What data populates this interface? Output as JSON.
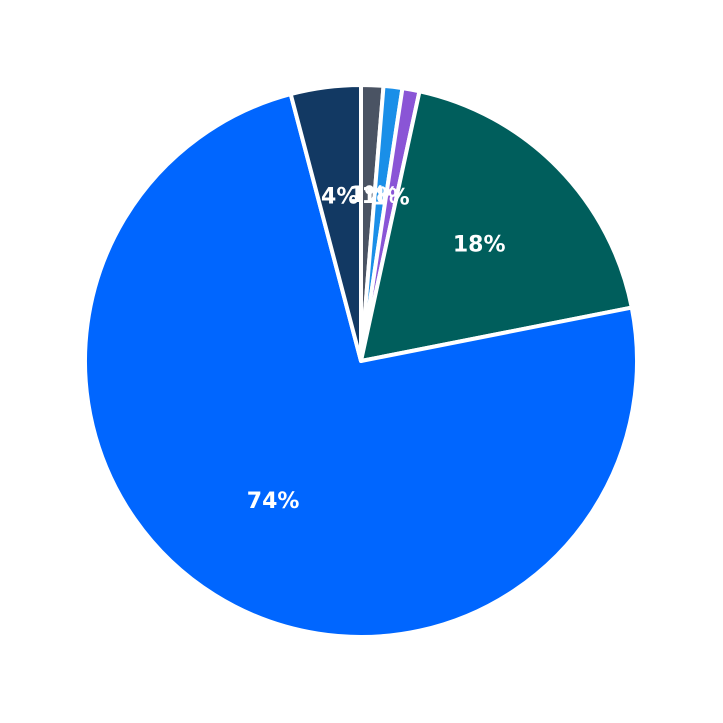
{
  "chart_data": {
    "type": "pie",
    "title": "",
    "start_angle_deg": 90,
    "direction": "clockwise",
    "slices": [
      {
        "label": "1%",
        "value": 1.3,
        "color": "#4a5363"
      },
      {
        "label": "1%",
        "value": 1.1,
        "color": "#1a8fe8"
      },
      {
        "label": "1%",
        "value": 1.0,
        "color": "#8a55d6"
      },
      {
        "label": "18%",
        "value": 18.5,
        "color": "#005e5c"
      },
      {
        "label": "74%",
        "value": 74.0,
        "color": "#0066ff"
      },
      {
        "label": "4%",
        "value": 4.1,
        "color": "#123963"
      }
    ]
  }
}
